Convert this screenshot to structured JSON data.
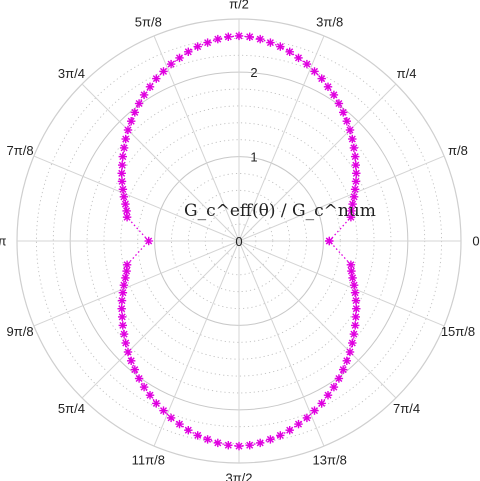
{
  "chart_data": {
    "type": "polar-scatter",
    "center_label": "G_c^eff(θ) / G_c^num",
    "angle_tick_labels": [
      "0",
      "π/8",
      "π/4",
      "3π/8",
      "π/2",
      "5π/8",
      "3π/4",
      "7π/8",
      "π",
      "9π/8",
      "5π/4",
      "11π/8",
      "3π/2",
      "13π/8",
      "7π/4",
      "15π/8"
    ],
    "radial_tick_labels": [
      "0",
      "1",
      "2"
    ],
    "radial_ticks": [
      0,
      1,
      2
    ],
    "rlim": [
      0,
      2.63
    ],
    "grid": true,
    "series": [
      {
        "color": "#e000e0",
        "marker": "asterisk",
        "line_style": "dotted",
        "theta_rad": [
          0.0,
          0.2094,
          0.2618,
          0.3142,
          0.3665,
          0.4189,
          0.4712,
          0.5236,
          0.576,
          0.6283,
          0.6807,
          0.733,
          0.7854,
          0.8378,
          0.8901,
          0.9425,
          0.9948,
          1.0472,
          1.0996,
          1.1519,
          1.2043,
          1.2566,
          1.309,
          1.3614,
          1.4137,
          1.4661,
          1.5184,
          1.5708,
          1.6232,
          1.6755,
          1.7279,
          1.7802,
          1.8326,
          1.885,
          1.9373,
          1.9897,
          2.042,
          2.0944,
          2.1468,
          2.1991,
          2.2515,
          2.3038,
          2.3562,
          2.4086,
          2.4609,
          2.5133,
          2.5656,
          2.618,
          2.6704,
          2.7227,
          2.7751,
          2.8274,
          2.8798,
          2.9322,
          3.1416,
          3.351,
          3.4034,
          3.4558,
          3.5081,
          3.5605,
          3.6128,
          3.6652,
          3.7176,
          3.7699,
          3.8223,
          3.8746,
          3.927,
          3.9794,
          4.0317,
          4.0841,
          4.1364,
          4.1888,
          4.2412,
          4.2935,
          4.3459,
          4.3982,
          4.4506,
          4.5029,
          4.5553,
          4.6077,
          4.66,
          4.7124,
          4.7648,
          4.8171,
          4.8695,
          4.9218,
          4.9742,
          5.0265,
          5.0789,
          5.1313,
          5.1836,
          5.236,
          5.2883,
          5.3407,
          5.3931,
          5.4454,
          5.4978,
          5.5501,
          5.6025,
          5.6549,
          5.7072,
          5.7596,
          5.8119,
          5.8643,
          5.9166,
          5.969,
          6.0214,
          6.0737,
          6.2832
        ],
        "r": [
          1.07,
          1.355,
          1.378,
          1.415,
          1.46,
          1.506,
          1.556,
          1.605,
          1.65,
          1.701,
          1.752,
          1.806,
          1.86,
          1.909,
          1.961,
          2.013,
          2.064,
          2.109,
          2.159,
          2.2,
          2.245,
          2.281,
          2.321,
          2.354,
          2.38,
          2.405,
          2.423,
          2.43,
          2.423,
          2.405,
          2.38,
          2.354,
          2.321,
          2.281,
          2.245,
          2.2,
          2.159,
          2.109,
          2.064,
          2.013,
          1.961,
          1.909,
          1.86,
          1.806,
          1.752,
          1.701,
          1.65,
          1.605,
          1.556,
          1.506,
          1.46,
          1.415,
          1.378,
          1.355,
          1.07,
          1.355,
          1.378,
          1.415,
          1.46,
          1.506,
          1.556,
          1.605,
          1.65,
          1.701,
          1.752,
          1.806,
          1.86,
          1.909,
          1.961,
          2.013,
          2.064,
          2.109,
          2.159,
          2.2,
          2.245,
          2.281,
          2.321,
          2.354,
          2.38,
          2.405,
          2.423,
          2.43,
          2.423,
          2.405,
          2.38,
          2.354,
          2.321,
          2.281,
          2.245,
          2.2,
          2.159,
          2.109,
          2.064,
          2.013,
          1.961,
          1.909,
          1.86,
          1.806,
          1.752,
          1.701,
          1.65,
          1.605,
          1.556,
          1.506,
          1.46,
          1.415,
          1.378,
          1.355,
          1.07
        ]
      }
    ]
  }
}
